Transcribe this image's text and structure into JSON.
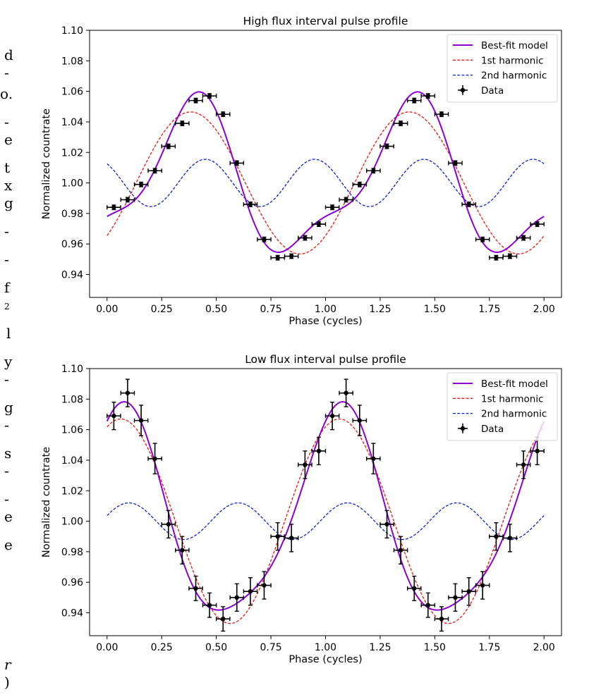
{
  "margin_glyphs": [
    {
      "text": "d",
      "top": 68
    },
    {
      "text": "-",
      "top": 93
    },
    {
      "text": "o.",
      "top": 123
    },
    {
      "text": "-",
      "top": 163
    },
    {
      "text": "e",
      "top": 188
    },
    {
      "text": "t",
      "top": 228
    },
    {
      "text": "x",
      "top": 253
    },
    {
      "text": "g",
      "top": 278
    },
    {
      "text": "-",
      "top": 318
    },
    {
      "text": "-",
      "top": 358
    },
    {
      "text": "f",
      "top": 398
    },
    {
      "text": "2",
      "top": 425,
      "sup": true
    },
    {
      "text": "l",
      "top": 463
    },
    {
      "text": "y",
      "top": 503
    },
    {
      "text": "-",
      "top": 528
    },
    {
      "text": "g",
      "top": 568
    },
    {
      "text": "-",
      "top": 593
    },
    {
      "text": "s",
      "top": 633
    },
    {
      "text": "-",
      "top": 658
    },
    {
      "text": "-",
      "top": 698
    },
    {
      "text": "e",
      "top": 723
    },
    {
      "text": "e",
      "top": 763
    },
    {
      "text": "r",
      "top": 933,
      "italic": true
    },
    {
      "text": ")",
      "top": 958
    }
  ],
  "colors": {
    "model": "#8c00d4",
    "harmonic1": "#e8190f",
    "harmonic2": "#0b24c8",
    "data": "#000000"
  },
  "chart_data": [
    {
      "type": "line",
      "title": "High flux interval pulse profile",
      "xlabel": "Phase (cycles)",
      "ylabel": "Normalized countrate",
      "xlim": [
        -0.08,
        2.08
      ],
      "ylim": [
        0.925,
        1.1
      ],
      "xticks": [
        "0.00",
        "0.25",
        "0.50",
        "0.75",
        "1.00",
        "1.25",
        "1.50",
        "1.75",
        "2.00"
      ],
      "yticks": [
        "0.94",
        "0.96",
        "0.98",
        "1.00",
        "1.02",
        "1.04",
        "1.06",
        "1.08",
        "1.10"
      ],
      "legend": [
        "Best-fit model",
        "1st harmonic",
        "2nd harmonic",
        "Data"
      ],
      "legend_position": "top-right",
      "harmonic1": {
        "amplitude": 0.0465,
        "peak_phase": 0.383
      },
      "harmonic2": {
        "amplitude": 0.0155,
        "peak_phase": 0.45
      },
      "data": {
        "x": [
          0.031,
          0.094,
          0.156,
          0.219,
          0.281,
          0.344,
          0.406,
          0.469,
          0.531,
          0.594,
          0.656,
          0.719,
          0.781,
          0.844,
          0.906,
          0.969,
          1.031,
          1.094,
          1.156,
          1.219,
          1.281,
          1.344,
          1.406,
          1.469,
          1.531,
          1.594,
          1.656,
          1.719,
          1.781,
          1.844,
          1.906,
          1.969
        ],
        "y": [
          0.984,
          0.989,
          0.999,
          1.008,
          1.024,
          1.039,
          1.054,
          1.057,
          1.045,
          1.013,
          0.986,
          0.963,
          0.951,
          0.952,
          0.964,
          0.973,
          0.984,
          0.989,
          0.999,
          1.008,
          1.024,
          1.039,
          1.054,
          1.057,
          1.045,
          1.013,
          0.986,
          0.963,
          0.951,
          0.952,
          0.964,
          0.973
        ],
        "xerr": 0.031,
        "yerr": [
          0.0015,
          0.0015,
          0.0015,
          0.0015,
          0.0015,
          0.0015,
          0.0015,
          0.0015,
          0.0015,
          0.0015,
          0.0015,
          0.0015,
          0.0015,
          0.0015,
          0.0015,
          0.0015,
          0.0015,
          0.0015,
          0.0015,
          0.0015,
          0.0015,
          0.0015,
          0.0015,
          0.0015,
          0.0015,
          0.0015,
          0.0015,
          0.0015,
          0.0015,
          0.0015,
          0.0015,
          0.0015
        ]
      }
    },
    {
      "type": "line",
      "title": "Low flux interval pulse profile",
      "xlabel": "Phase (cycles)",
      "ylabel": "Normalized countrate",
      "xlim": [
        -0.08,
        2.08
      ],
      "ylim": [
        0.925,
        1.1
      ],
      "xticks": [
        "0.00",
        "0.25",
        "0.50",
        "0.75",
        "1.00",
        "1.25",
        "1.50",
        "1.75",
        "2.00"
      ],
      "yticks": [
        "0.94",
        "0.96",
        "0.98",
        "1.00",
        "1.02",
        "1.04",
        "1.06",
        "1.08",
        "1.10"
      ],
      "legend": [
        "Best-fit model",
        "1st harmonic",
        "2nd harmonic",
        "Data"
      ],
      "legend_position": "top-right",
      "harmonic1": {
        "amplitude": 0.067,
        "peak_phase": 0.063
      },
      "harmonic2": {
        "amplitude": 0.012,
        "peak_phase": 0.1
      },
      "data": {
        "x": [
          0.031,
          0.094,
          0.156,
          0.219,
          0.281,
          0.344,
          0.406,
          0.469,
          0.531,
          0.594,
          0.656,
          0.719,
          0.781,
          0.844,
          0.906,
          0.969,
          1.031,
          1.094,
          1.156,
          1.219,
          1.281,
          1.344,
          1.406,
          1.469,
          1.531,
          1.594,
          1.656,
          1.719,
          1.781,
          1.844,
          1.906,
          1.969
        ],
        "y": [
          1.069,
          1.084,
          1.066,
          1.041,
          0.998,
          0.981,
          0.956,
          0.945,
          0.936,
          0.95,
          0.954,
          0.958,
          0.99,
          0.989,
          1.037,
          1.046,
          1.069,
          1.084,
          1.066,
          1.041,
          0.998,
          0.981,
          0.956,
          0.945,
          0.936,
          0.95,
          0.954,
          0.958,
          0.99,
          0.989,
          1.037,
          1.046
        ],
        "xerr": 0.031,
        "yerr": [
          0.009,
          0.009,
          0.01,
          0.01,
          0.009,
          0.009,
          0.008,
          0.008,
          0.008,
          0.009,
          0.009,
          0.009,
          0.009,
          0.009,
          0.009,
          0.009,
          0.009,
          0.009,
          0.01,
          0.01,
          0.009,
          0.009,
          0.008,
          0.008,
          0.008,
          0.009,
          0.009,
          0.009,
          0.009,
          0.009,
          0.009,
          0.009
        ]
      }
    }
  ]
}
